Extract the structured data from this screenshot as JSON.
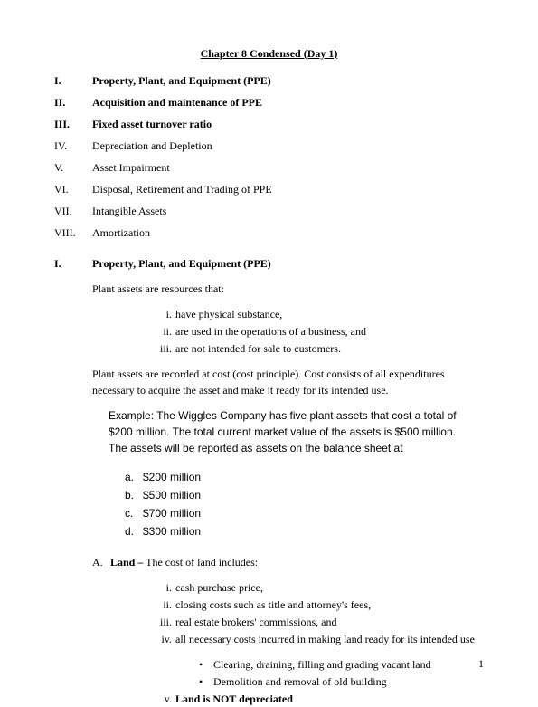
{
  "title": "Chapter 8 Condensed (Day 1)",
  "toc": [
    {
      "num": "I.",
      "label": "Property, Plant, and Equipment (PPE)",
      "bold": true
    },
    {
      "num": "II.",
      "label": "Acquisition and maintenance of PPE",
      "bold": true
    },
    {
      "num": "III.",
      "label": "Fixed asset turnover ratio",
      "bold": true
    },
    {
      "num": "IV.",
      "label": "Depreciation and Depletion",
      "bold": false
    },
    {
      "num": "V.",
      "label": "Asset Impairment",
      "bold": false
    },
    {
      "num": "VI.",
      "label": "Disposal, Retirement and Trading of PPE",
      "bold": false
    },
    {
      "num": "VII.",
      "label": "Intangible Assets",
      "bold": false
    },
    {
      "num": "VIII.",
      "label": "Amortization",
      "bold": false
    }
  ],
  "section1": {
    "num": "I.",
    "label": "Property, Plant, and Equipment (PPE)",
    "intro": "Plant assets are resources that:",
    "criteria": [
      {
        "num": "i.",
        "text": "have physical substance,"
      },
      {
        "num": "ii.",
        "text": "are used in the operations of a business, and"
      },
      {
        "num": "iii.",
        "text": "are not intended for sale to customers."
      }
    ],
    "principle": "Plant assets are recorded at cost (cost principle).  Cost consists of all expenditures necessary to acquire the asset and make it ready for its intended use.",
    "example": "Example: The Wiggles Company has five plant assets that cost a total of $200 million.  The total current market value of the assets is $500 million.  The assets will be reported as assets on the balance sheet at",
    "options": [
      {
        "letter": "a.",
        "text": "$200 million"
      },
      {
        "letter": "b.",
        "text": "$500 million"
      },
      {
        "letter": "c.",
        "text": "$700 million"
      },
      {
        "letter": "d.",
        "text": "$300 million"
      }
    ],
    "subsectionA": {
      "letter": "A.",
      "heading": "Land –",
      "tail": " The cost of land includes:",
      "items": [
        {
          "num": "i.",
          "text": "cash purchase price,"
        },
        {
          "num": "ii.",
          "text": "closing costs such as title and attorney's fees,"
        },
        {
          "num": "iii.",
          "text": "real estate brokers' commissions, and"
        },
        {
          "num": "iv.",
          "text": "all necessary costs incurred in making land ready for its intended use"
        }
      ],
      "bullets": [
        "Clearing, draining, filling and grading vacant land",
        "Demolition and removal of old building"
      ],
      "finalItem": {
        "num": "v.",
        "text": "Land is NOT depreciated"
      }
    }
  },
  "pageNumber": "1"
}
